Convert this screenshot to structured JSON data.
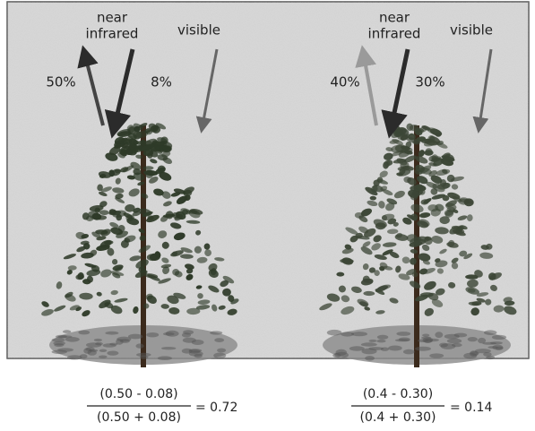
{
  "panels": [
    {
      "nir_line1": "near",
      "nir_line2": "infrared",
      "visible": "visible",
      "nir_reflect": "50%",
      "vis_reflect": "8%",
      "numerator": "(0.50 - 0.08)",
      "denominator": "(0.50 + 0.08)",
      "result": "= 0.72"
    },
    {
      "nir_line1": "near",
      "nir_line2": "infrared",
      "visible": "visible",
      "nir_reflect": "40%",
      "vis_reflect": "30%",
      "numerator": "(0.4 - 0.30)",
      "denominator": "(0.4 + 0.30)",
      "result": "= 0.14"
    }
  ]
}
